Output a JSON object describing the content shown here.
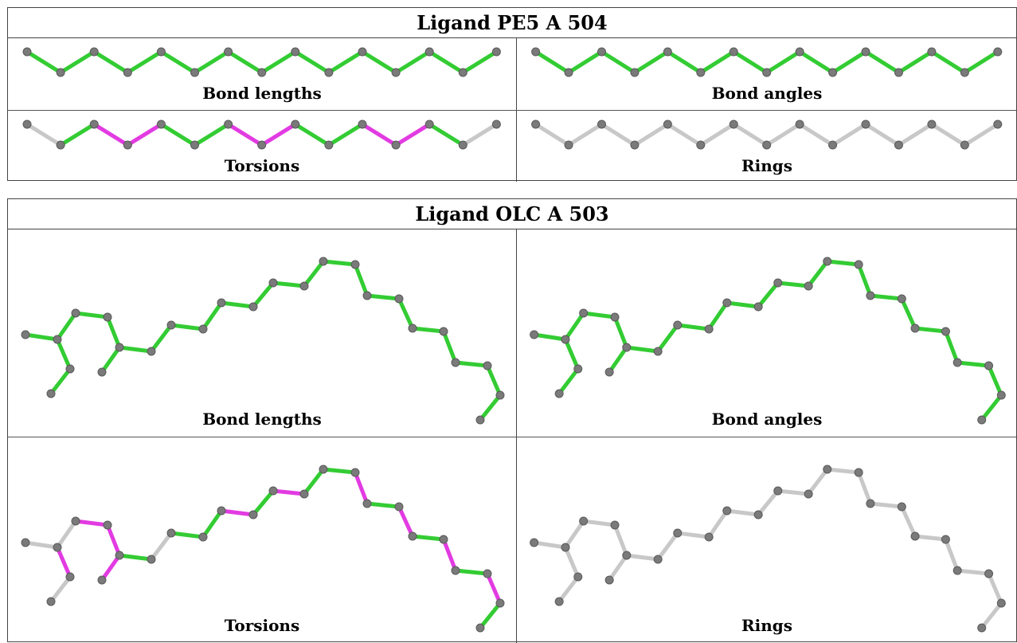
{
  "sections": [
    {
      "title": "Ligand PE5 A 504",
      "panels": [
        {
          "caption": "Bond lengths",
          "kind": "zigzag",
          "colors": [
            "green",
            "green",
            "green",
            "green",
            "green",
            "green",
            "green",
            "green",
            "green",
            "green",
            "green",
            "green",
            "green",
            "green"
          ]
        },
        {
          "caption": "Bond angles",
          "kind": "zigzag",
          "colors": [
            "green",
            "green",
            "green",
            "green",
            "green",
            "green",
            "green",
            "green",
            "green",
            "green",
            "green",
            "green",
            "green",
            "green"
          ]
        },
        {
          "caption": "Torsions",
          "kind": "zigzag",
          "colors": [
            "grey",
            "green",
            "magenta",
            "magenta",
            "green",
            "green",
            "magenta",
            "magenta",
            "green",
            "green",
            "magenta",
            "magenta",
            "green",
            "grey"
          ]
        },
        {
          "caption": "Rings",
          "kind": "zigzag",
          "colors": [
            "grey",
            "grey",
            "grey",
            "grey",
            "grey",
            "grey",
            "grey",
            "grey",
            "grey",
            "grey",
            "grey",
            "grey",
            "grey",
            "grey"
          ]
        }
      ]
    },
    {
      "title": "Ligand OLC A 503",
      "panels": [
        {
          "caption": "Bond lengths",
          "kind": "chain",
          "colors": [
            "green",
            "green",
            "green",
            "green",
            "green",
            "green",
            "green",
            "green",
            "green",
            "green",
            "green",
            "green",
            "green",
            "green",
            "green",
            "green",
            "green",
            "green",
            "green",
            "green",
            "green",
            "green",
            "green",
            "green"
          ]
        },
        {
          "caption": "Bond angles",
          "kind": "chain",
          "colors": [
            "green",
            "green",
            "green",
            "green",
            "green",
            "green",
            "green",
            "green",
            "green",
            "green",
            "green",
            "green",
            "green",
            "green",
            "green",
            "green",
            "green",
            "green",
            "green",
            "green",
            "green",
            "green",
            "green",
            "green"
          ]
        },
        {
          "caption": "Torsions",
          "kind": "chain",
          "colors": [
            "grey",
            "grey",
            "magenta",
            "magenta",
            "green",
            "grey",
            "green",
            "green",
            "magenta",
            "green",
            "magenta",
            "green",
            "green",
            "magenta",
            "green",
            "magenta",
            "green",
            "magenta",
            "green",
            "magenta",
            "green",
            "magenta",
            "grey",
            "magenta"
          ]
        },
        {
          "caption": "Rings",
          "kind": "chain",
          "colors": [
            "grey",
            "grey",
            "grey",
            "grey",
            "grey",
            "grey",
            "grey",
            "grey",
            "grey",
            "grey",
            "grey",
            "grey",
            "grey",
            "grey",
            "grey",
            "grey",
            "grey",
            "grey",
            "grey",
            "grey",
            "grey",
            "grey",
            "grey",
            "grey"
          ]
        }
      ]
    }
  ],
  "palette": {
    "green": "#33cc33",
    "magenta": "#e23be2",
    "grey": "#c8c8c8",
    "atom": "#7a7a7a"
  }
}
